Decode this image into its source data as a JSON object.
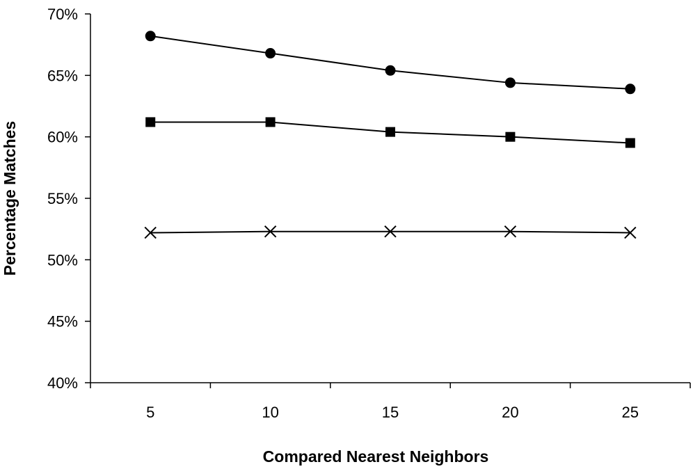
{
  "chart_data": {
    "type": "line",
    "title": "",
    "xlabel": "Compared Nearest Neighbors",
    "ylabel": "Percentage Matches",
    "x": [
      5,
      10,
      15,
      20,
      25
    ],
    "x_tick_labels": [
      "5",
      "10",
      "15",
      "20",
      "25"
    ],
    "ylim": [
      40,
      70
    ],
    "y_tick_labels": [
      "40%",
      "45%",
      "50%",
      "55%",
      "60%",
      "65%",
      "70%"
    ],
    "y_ticks": [
      40,
      45,
      50,
      55,
      60,
      65,
      70
    ],
    "grid": false,
    "legend": "none",
    "series": [
      {
        "marker": "circle",
        "values": [
          68.2,
          66.8,
          65.4,
          64.4,
          63.9
        ]
      },
      {
        "marker": "square",
        "values": [
          61.2,
          61.2,
          60.4,
          60.0,
          59.5
        ]
      },
      {
        "marker": "x",
        "values": [
          52.2,
          52.3,
          52.3,
          52.3,
          52.2
        ]
      }
    ],
    "line_color": "#000000"
  }
}
